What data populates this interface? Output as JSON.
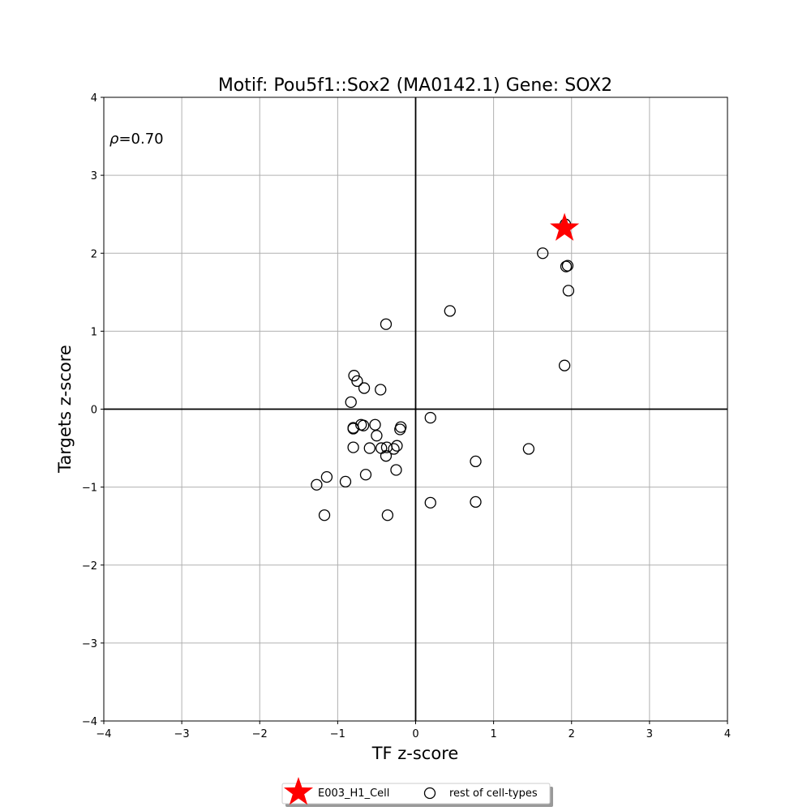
{
  "chart_data": {
    "type": "scatter",
    "title": "Motif: Pou5f1::Sox2 (MA0142.1) Gene: SOX2",
    "xlabel": "TF z-score",
    "ylabel": "Targets z-score",
    "xlim": [
      -4,
      4
    ],
    "ylim": [
      -4,
      4
    ],
    "xticks": [
      -4,
      -3,
      -2,
      -1,
      0,
      1,
      2,
      3,
      4
    ],
    "yticks": [
      -4,
      -3,
      -2,
      -1,
      0,
      1,
      2,
      3,
      4
    ],
    "xtick_labels": [
      "−4",
      "−3",
      "−2",
      "−1",
      "0",
      "1",
      "2",
      "3",
      "4"
    ],
    "ytick_labels": [
      "−4",
      "−3",
      "−2",
      "−1",
      "0",
      "1",
      "2",
      "3",
      "4"
    ],
    "grid": true,
    "annotation": {
      "symbol": "ρ",
      "text": "=0.70"
    },
    "legend_position": "bottom-center",
    "series": [
      {
        "name": "E003_H1_Cell",
        "marker": "star",
        "color": "#ff0000",
        "points": [
          [
            1.91,
            2.32
          ]
        ]
      },
      {
        "name": "rest of cell-types",
        "marker": "open-circle",
        "color": "#000000",
        "points": [
          [
            1.92,
            2.37
          ],
          [
            1.63,
            2.0
          ],
          [
            1.93,
            1.83
          ],
          [
            1.95,
            1.84
          ],
          [
            1.96,
            1.52
          ],
          [
            0.44,
            1.26
          ],
          [
            -0.38,
            1.09
          ],
          [
            1.91,
            0.56
          ],
          [
            -0.79,
            0.43
          ],
          [
            -0.75,
            0.36
          ],
          [
            -0.66,
            0.27
          ],
          [
            -0.45,
            0.25
          ],
          [
            -0.83,
            0.09
          ],
          [
            0.19,
            -0.11
          ],
          [
            -0.19,
            -0.23
          ],
          [
            -0.2,
            -0.26
          ],
          [
            -0.52,
            -0.2
          ],
          [
            -0.7,
            -0.2
          ],
          [
            -0.67,
            -0.21
          ],
          [
            -0.8,
            -0.24
          ],
          [
            -0.8,
            -0.25
          ],
          [
            -0.5,
            -0.34
          ],
          [
            -0.24,
            -0.47
          ],
          [
            -0.37,
            -0.49
          ],
          [
            -0.44,
            -0.5
          ],
          [
            -0.59,
            -0.5
          ],
          [
            -0.8,
            -0.49
          ],
          [
            -0.28,
            -0.51
          ],
          [
            -0.38,
            -0.6
          ],
          [
            0.77,
            -0.67
          ],
          [
            1.45,
            -0.51
          ],
          [
            -0.25,
            -0.78
          ],
          [
            -0.64,
            -0.84
          ],
          [
            -1.14,
            -0.87
          ],
          [
            -0.9,
            -0.93
          ],
          [
            -1.27,
            -0.97
          ],
          [
            0.19,
            -1.2
          ],
          [
            0.77,
            -1.19
          ],
          [
            -1.17,
            -1.36
          ],
          [
            -0.36,
            -1.36
          ]
        ]
      }
    ]
  }
}
